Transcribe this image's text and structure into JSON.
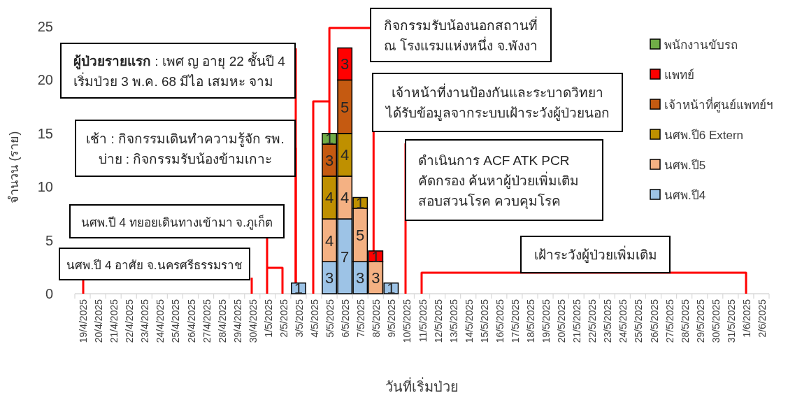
{
  "chart_data": {
    "type": "bar",
    "stacked": true,
    "data_labels": true,
    "legend": "right",
    "xlabel": "วันที่เริ่มป่วย",
    "ylabel": "จำนวน (ราย)",
    "ylim": [
      0,
      25
    ],
    "yticks": [
      0,
      5,
      10,
      15,
      20,
      25
    ],
    "categories": [
      "19/4/2025",
      "20/4/2025",
      "21/4/2025",
      "22/4/2025",
      "23/4/2025",
      "24/4/2025",
      "25/4/2025",
      "26/4/2025",
      "27/4/2025",
      "28/4/2025",
      "29/4/2025",
      "30/4/2025",
      "1/5/2025",
      "2/5/2025",
      "3/5/2025",
      "4/5/2025",
      "5/5/2025",
      "6/5/2025",
      "7/5/2025",
      "8/5/2025",
      "9/5/2025",
      "10/5/2025",
      "11/5/2025",
      "12/5/2025",
      "13/5/2025",
      "14/5/2025",
      "15/5/2025",
      "16/5/2025",
      "17/5/2025",
      "18/5/2025",
      "19/5/2025",
      "20/5/2025",
      "21/5/2025",
      "22/5/2025",
      "23/5/2025",
      "24/5/2025",
      "25/5/2025",
      "26/5/2025",
      "27/5/2025",
      "28/5/2025",
      "29/5/2025",
      "30/5/2025",
      "31/5/2025",
      "1/6/2025",
      "2/6/2025"
    ],
    "series": [
      {
        "name": "นศพ.ปี4",
        "color": "#9dc3e6",
        "values": [
          null,
          null,
          null,
          null,
          null,
          null,
          null,
          null,
          null,
          null,
          null,
          null,
          null,
          null,
          1,
          null,
          3,
          7,
          3,
          null,
          1,
          null,
          null,
          null,
          null,
          null,
          null,
          null,
          null,
          null,
          null,
          null,
          null,
          null,
          null,
          null,
          null,
          null,
          null,
          null,
          null,
          null,
          null,
          null,
          null
        ]
      },
      {
        "name": "นศพ.ปี5",
        "color": "#f4b183",
        "values": [
          null,
          null,
          null,
          null,
          null,
          null,
          null,
          null,
          null,
          null,
          null,
          null,
          null,
          null,
          null,
          null,
          4,
          4,
          5,
          3,
          null,
          null,
          null,
          null,
          null,
          null,
          null,
          null,
          null,
          null,
          null,
          null,
          null,
          null,
          null,
          null,
          null,
          null,
          null,
          null,
          null,
          null,
          null,
          null,
          null
        ]
      },
      {
        "name": "นศพ.ปี6 Extern",
        "color": "#bf9000",
        "values": [
          null,
          null,
          null,
          null,
          null,
          null,
          null,
          null,
          null,
          null,
          null,
          null,
          null,
          null,
          null,
          null,
          4,
          4,
          1,
          null,
          null,
          null,
          null,
          null,
          null,
          null,
          null,
          null,
          null,
          null,
          null,
          null,
          null,
          null,
          null,
          null,
          null,
          null,
          null,
          null,
          null,
          null,
          null,
          null,
          null
        ]
      },
      {
        "name": "เจ้าหน้าที่ศูนย์แพทย์ฯ",
        "color": "#c55a11",
        "values": [
          null,
          null,
          null,
          null,
          null,
          null,
          null,
          null,
          null,
          null,
          null,
          null,
          null,
          null,
          null,
          null,
          3,
          5,
          null,
          null,
          null,
          null,
          null,
          null,
          null,
          null,
          null,
          null,
          null,
          null,
          null,
          null,
          null,
          null,
          null,
          null,
          null,
          null,
          null,
          null,
          null,
          null,
          null,
          null,
          null
        ]
      },
      {
        "name": "แพทย์",
        "color": "#ff0000",
        "values": [
          null,
          null,
          null,
          null,
          null,
          null,
          null,
          null,
          null,
          null,
          null,
          null,
          null,
          null,
          null,
          null,
          null,
          3,
          null,
          1,
          null,
          null,
          null,
          null,
          null,
          null,
          null,
          null,
          null,
          null,
          null,
          null,
          null,
          null,
          null,
          null,
          null,
          null,
          null,
          null,
          null,
          null,
          null,
          null,
          null
        ]
      },
      {
        "name": "พนักงานขับรถ",
        "color": "#70ad47",
        "values": [
          null,
          null,
          null,
          null,
          null,
          null,
          null,
          null,
          null,
          null,
          null,
          null,
          null,
          null,
          null,
          null,
          1,
          null,
          null,
          null,
          null,
          null,
          null,
          null,
          null,
          null,
          null,
          null,
          null,
          null,
          null,
          null,
          null,
          null,
          null,
          null,
          null,
          null,
          null,
          null,
          null,
          null,
          null,
          null,
          null
        ]
      }
    ],
    "annotations": [
      {
        "text": "กิจกรรมรับน้องนอกสถานที่\nณ โรงแรมแห่งหนึ่ง จ.พังงา",
        "x": "5/5/2025",
        "y": 15
      },
      {
        "text": "ผู้ป่วยรายแรก : เพศ ญ อายุ 22 ชั้นปี 4\nเริ่มป่วย 3 พ.ค. 68 มีไอ เสมหะ จาม",
        "x": "3/5/2025",
        "y": 1
      },
      {
        "text": "เจ้าหน้าที่งานป้องกันและระบาดวิทยา\nได้รับข้อมูลจากระบบเฝ้าระวังผู้ป่วยนอก",
        "x": "8/5/2025",
        "y": 4
      },
      {
        "text": "เช้า : กิจกรรมเดินทำความรู้จัก รพ.\nบ่าย : กิจกรรมรับน้องข้ามเกาะ",
        "x": "3/5/2025",
        "y": 1
      },
      "ดำเนินการ ACF  ATK PCR\nคัดกรอง ค้นหาผู้ป่วยเพิ่มเติม\nสอบสวนโรค ควบคุมโรค",
      "นศพ.ปี 4 ทยอยเดินทางเข้ามา จ.ภูเก็ต",
      "เฝ้าระวังผู้ป่วยเพิ่มเติม",
      "นศพ.ปี 4 อาศัย จ.นครศรีธรรมราช"
    ]
  }
}
